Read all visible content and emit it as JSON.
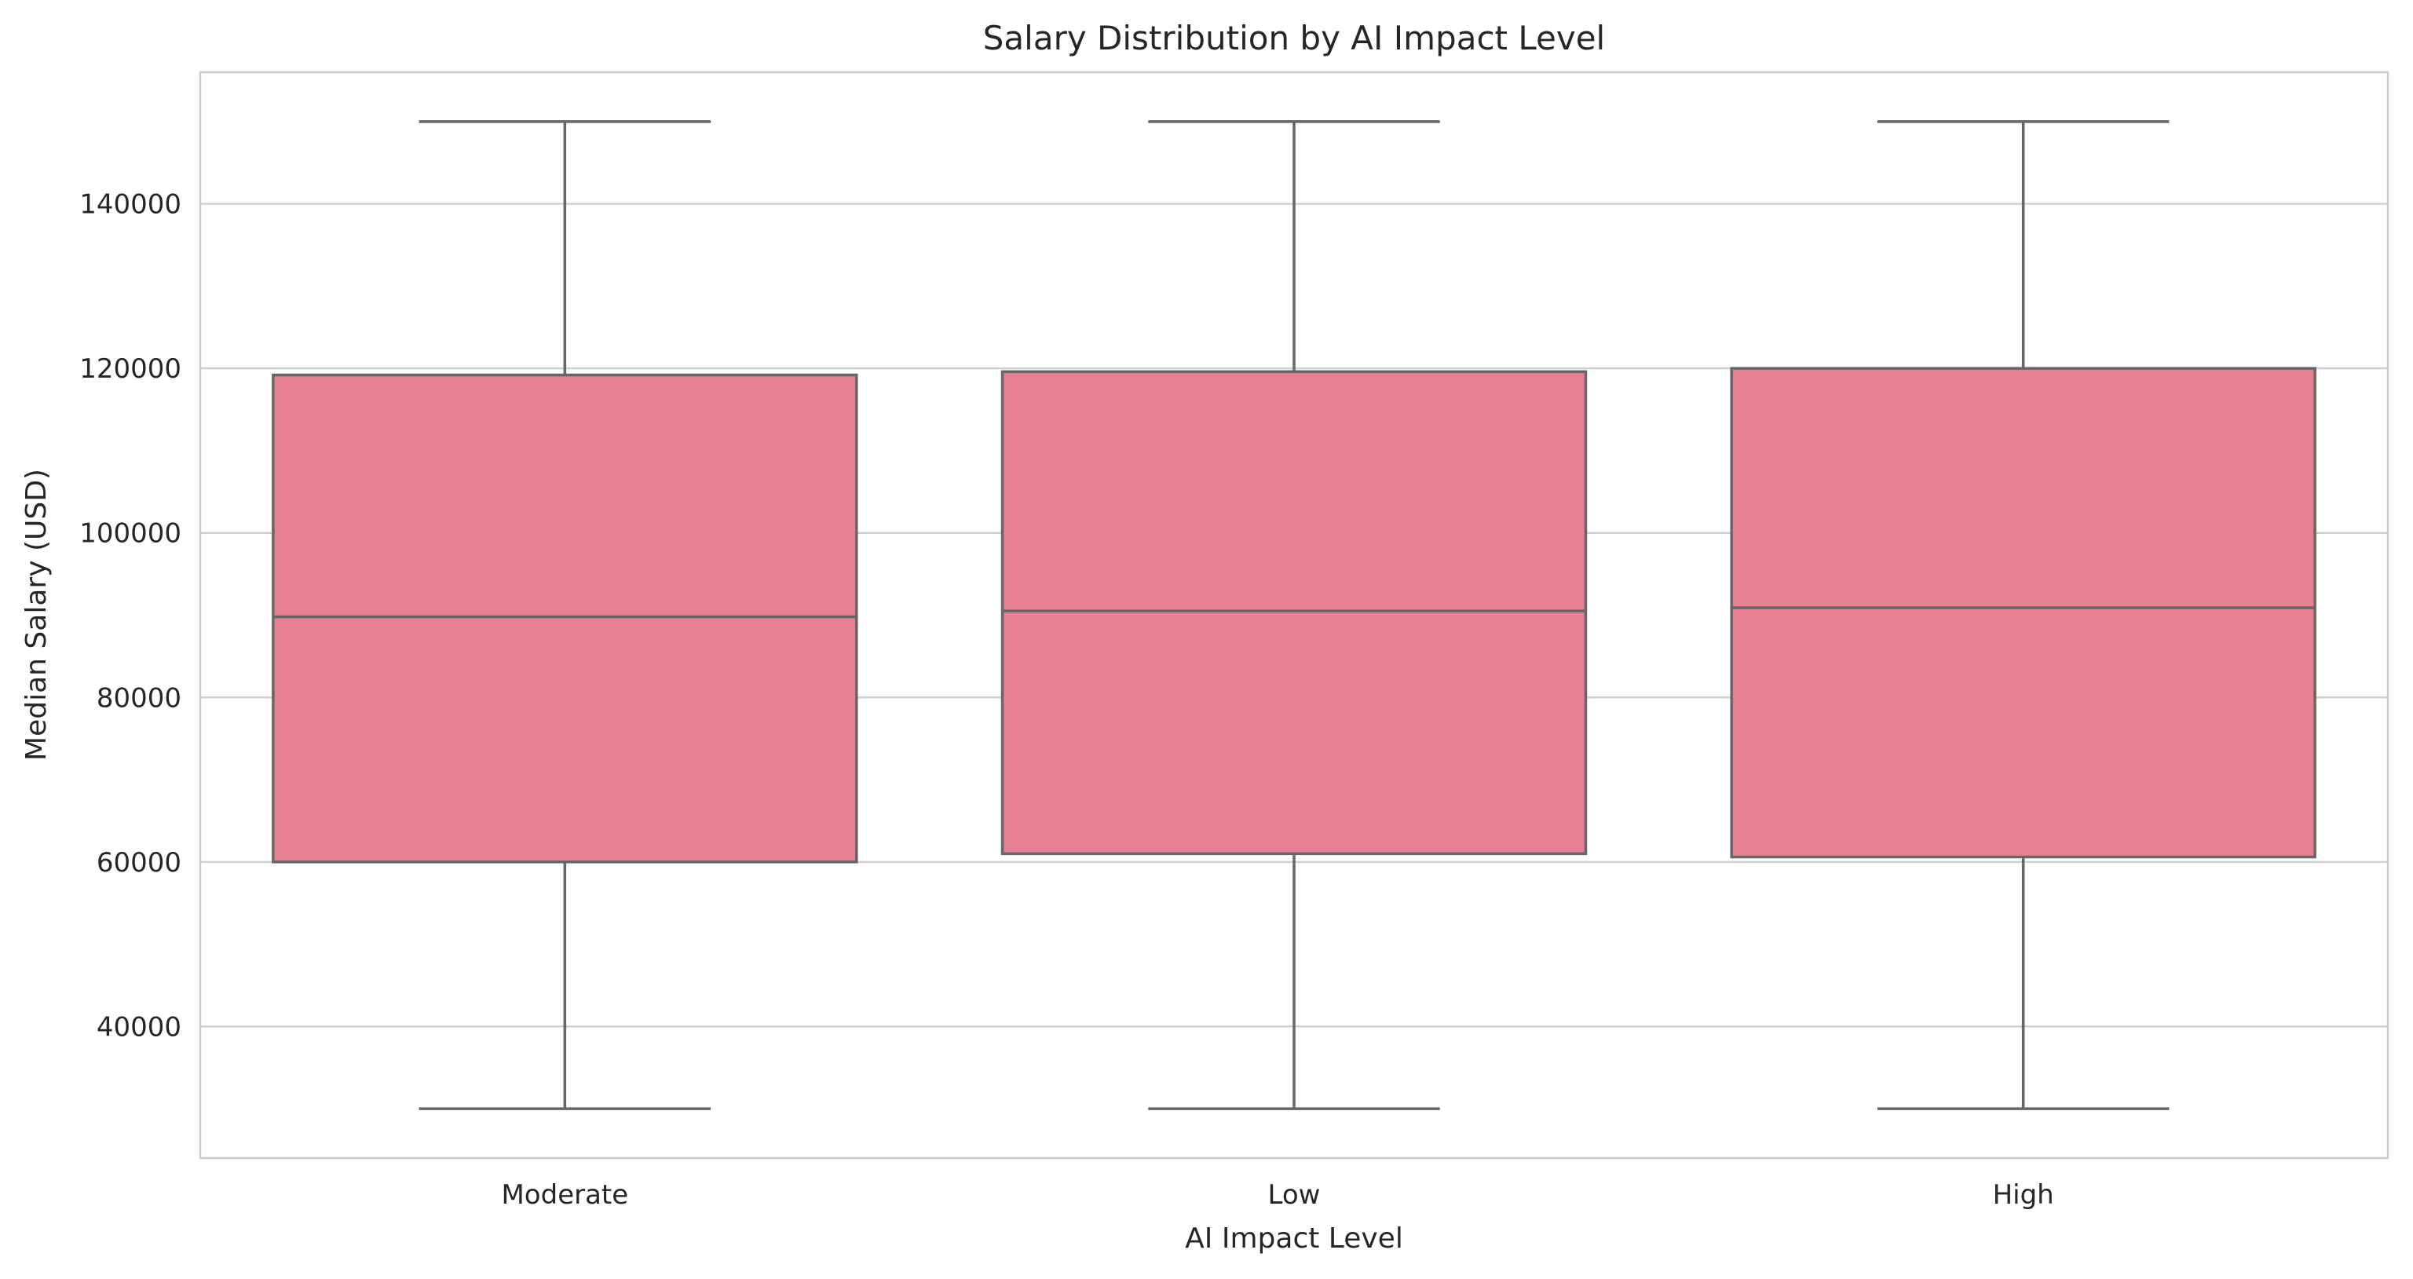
{
  "chart_data": {
    "type": "box",
    "title": "Salary Distribution by AI Impact Level",
    "xlabel": "AI Impact Level",
    "ylabel": "Median Salary (USD)",
    "ylim": [
      24000,
      156000
    ],
    "yticks": [
      40000,
      60000,
      80000,
      100000,
      120000,
      140000
    ],
    "grid": true,
    "categories": [
      "Moderate",
      "Low",
      "High"
    ],
    "boxes": [
      {
        "category": "Moderate",
        "min": 30000,
        "q1": 60000,
        "median": 89800,
        "q3": 119200,
        "max": 150000
      },
      {
        "category": "Low",
        "min": 30000,
        "q1": 61000,
        "median": 90500,
        "q3": 119600,
        "max": 150000
      },
      {
        "category": "High",
        "min": 30000,
        "q1": 60600,
        "median": 90900,
        "q3": 120000,
        "max": 150000
      }
    ],
    "colors": {
      "box_fill": "#e78091",
      "line": "#666666",
      "grid": "#d0d0d0"
    }
  }
}
